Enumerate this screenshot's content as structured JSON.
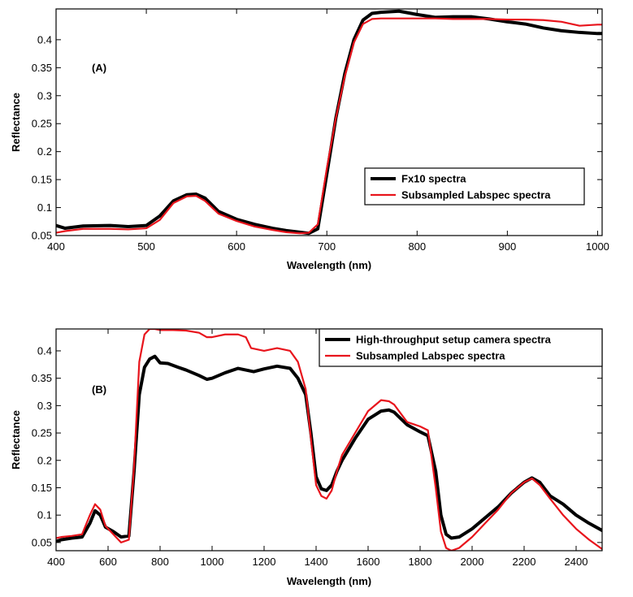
{
  "chart_data": [
    {
      "type": "line",
      "panel_label": "(A)",
      "xlabel": "Wavelength (nm)",
      "ylabel": "Reflectance",
      "xlim": [
        400,
        1005
      ],
      "ylim": [
        0.05,
        0.455
      ],
      "xticks": [
        400,
        500,
        600,
        700,
        800,
        900,
        1000
      ],
      "yticks": [
        0.05,
        0.1,
        0.15,
        0.2,
        0.25,
        0.3,
        0.35,
        0.4
      ],
      "legend_position": "lower-right",
      "series": [
        {
          "name": "Fx10 spectra",
          "color": "#000000",
          "x": [
            400,
            410,
            430,
            460,
            480,
            500,
            515,
            530,
            545,
            555,
            565,
            580,
            600,
            620,
            640,
            655,
            670,
            680,
            690,
            700,
            710,
            720,
            730,
            740,
            750,
            760,
            780,
            800,
            820,
            840,
            860,
            880,
            900,
            920,
            940,
            960,
            980,
            1000,
            1005
          ],
          "y": [
            0.068,
            0.063,
            0.067,
            0.068,
            0.066,
            0.068,
            0.085,
            0.112,
            0.123,
            0.124,
            0.117,
            0.093,
            0.079,
            0.07,
            0.063,
            0.059,
            0.056,
            0.054,
            0.062,
            0.16,
            0.26,
            0.34,
            0.4,
            0.435,
            0.447,
            0.449,
            0.451,
            0.445,
            0.44,
            0.441,
            0.441,
            0.437,
            0.432,
            0.428,
            0.421,
            0.416,
            0.413,
            0.411,
            0.411
          ]
        },
        {
          "name": "Subsampled Labspec spectra",
          "color": "#e8141c",
          "x": [
            400,
            410,
            430,
            460,
            480,
            500,
            515,
            530,
            545,
            555,
            565,
            580,
            600,
            620,
            640,
            655,
            670,
            680,
            690,
            700,
            710,
            720,
            730,
            740,
            750,
            760,
            780,
            800,
            820,
            840,
            860,
            880,
            900,
            920,
            940,
            960,
            980,
            1000,
            1005
          ],
          "y": [
            0.055,
            0.058,
            0.062,
            0.062,
            0.061,
            0.063,
            0.078,
            0.108,
            0.12,
            0.121,
            0.112,
            0.089,
            0.076,
            0.066,
            0.06,
            0.056,
            0.054,
            0.055,
            0.07,
            0.17,
            0.26,
            0.335,
            0.395,
            0.428,
            0.437,
            0.438,
            0.438,
            0.438,
            0.438,
            0.437,
            0.437,
            0.437,
            0.436,
            0.436,
            0.435,
            0.432,
            0.425,
            0.427,
            0.427
          ]
        }
      ]
    },
    {
      "type": "line",
      "panel_label": "(B)",
      "xlabel": "Wavelength (nm)",
      "ylabel": "Reflectance",
      "xlim": [
        400,
        2500
      ],
      "ylim": [
        0.035,
        0.44
      ],
      "xticks": [
        400,
        600,
        800,
        1000,
        1200,
        1400,
        1600,
        1800,
        2000,
        2200,
        2400
      ],
      "yticks": [
        0.05,
        0.1,
        0.15,
        0.2,
        0.25,
        0.3,
        0.35,
        0.4
      ],
      "legend_position": "top-right",
      "series": [
        {
          "name": "High-throughput setup camera spectra",
          "color": "#000000",
          "x": [
            400,
            420,
            460,
            500,
            530,
            550,
            570,
            590,
            620,
            650,
            680,
            700,
            720,
            740,
            760,
            780,
            800,
            830,
            870,
            900,
            950,
            980,
            1000,
            1050,
            1100,
            1130,
            1160,
            1200,
            1250,
            1300,
            1330,
            1360,
            1380,
            1400,
            1420,
            1440,
            1460,
            1480,
            1500,
            1550,
            1600,
            1650,
            1680,
            1700,
            1750,
            1800,
            1830,
            1860,
            1880,
            1900,
            1920,
            1950,
            2000,
            2050,
            2100,
            2150,
            2200,
            2230,
            2260,
            2300,
            2350,
            2400,
            2450,
            2500
          ],
          "y": [
            0.052,
            0.055,
            0.058,
            0.06,
            0.085,
            0.108,
            0.1,
            0.078,
            0.07,
            0.06,
            0.062,
            0.18,
            0.32,
            0.37,
            0.385,
            0.39,
            0.378,
            0.377,
            0.37,
            0.365,
            0.355,
            0.348,
            0.35,
            0.36,
            0.368,
            0.365,
            0.362,
            0.367,
            0.372,
            0.368,
            0.35,
            0.32,
            0.25,
            0.17,
            0.148,
            0.145,
            0.155,
            0.18,
            0.2,
            0.24,
            0.275,
            0.29,
            0.292,
            0.288,
            0.265,
            0.252,
            0.245,
            0.18,
            0.1,
            0.065,
            0.058,
            0.06,
            0.075,
            0.095,
            0.115,
            0.14,
            0.16,
            0.168,
            0.16,
            0.135,
            0.12,
            0.1,
            0.085,
            0.072
          ]
        },
        {
          "name": "Subsampled Labspec spectra",
          "color": "#e8141c",
          "x": [
            400,
            420,
            460,
            500,
            530,
            550,
            570,
            590,
            620,
            650,
            680,
            700,
            720,
            740,
            760,
            780,
            800,
            850,
            900,
            950,
            980,
            1000,
            1050,
            1100,
            1130,
            1150,
            1200,
            1250,
            1300,
            1330,
            1360,
            1380,
            1400,
            1420,
            1440,
            1460,
            1480,
            1500,
            1550,
            1600,
            1650,
            1680,
            1700,
            1750,
            1800,
            1830,
            1860,
            1880,
            1900,
            1920,
            1950,
            2000,
            2050,
            2100,
            2150,
            2200,
            2230,
            2260,
            2300,
            2350,
            2400,
            2450,
            2500
          ],
          "y": [
            0.058,
            0.06,
            0.062,
            0.065,
            0.1,
            0.12,
            0.11,
            0.08,
            0.065,
            0.05,
            0.055,
            0.19,
            0.38,
            0.43,
            0.44,
            0.44,
            0.438,
            0.438,
            0.437,
            0.433,
            0.425,
            0.425,
            0.43,
            0.43,
            0.425,
            0.405,
            0.4,
            0.405,
            0.4,
            0.38,
            0.33,
            0.24,
            0.155,
            0.135,
            0.13,
            0.145,
            0.18,
            0.21,
            0.25,
            0.29,
            0.31,
            0.308,
            0.302,
            0.27,
            0.262,
            0.255,
            0.15,
            0.07,
            0.04,
            0.035,
            0.04,
            0.06,
            0.085,
            0.11,
            0.14,
            0.16,
            0.167,
            0.155,
            0.13,
            0.1,
            0.075,
            0.055,
            0.038
          ]
        }
      ]
    }
  ]
}
